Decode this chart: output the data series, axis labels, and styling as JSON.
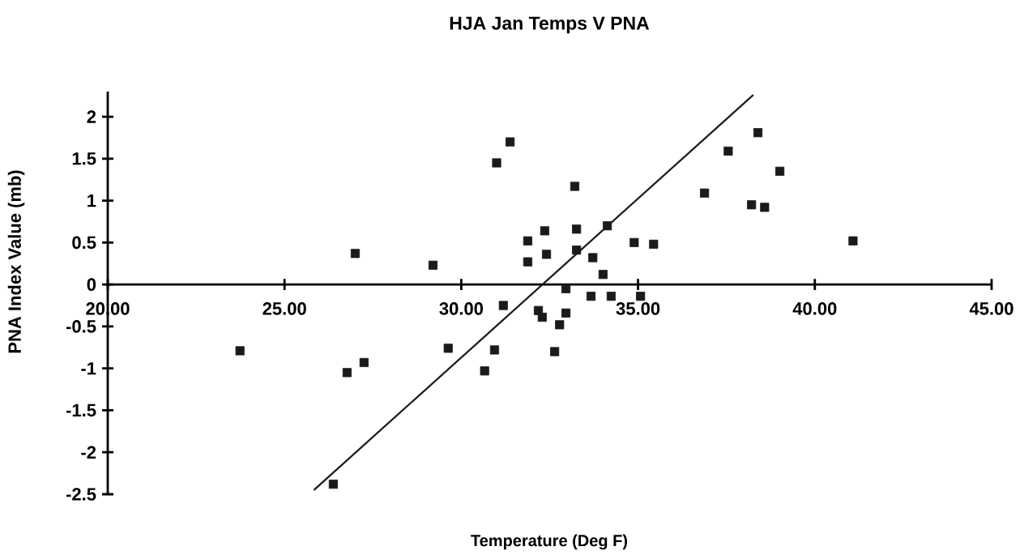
{
  "chart_data": {
    "type": "scatter",
    "title": "HJA Jan Temps V PNA",
    "xlabel": "Temperature (Deg F)",
    "ylabel": "PNA Index Value (mb)",
    "xlim": [
      20,
      45
    ],
    "ylim": [
      -2.5,
      2.3
    ],
    "xticks": [
      {
        "value": 20,
        "label": "20.00"
      },
      {
        "value": 25,
        "label": "25.00"
      },
      {
        "value": 30,
        "label": "30.00"
      },
      {
        "value": 35,
        "label": "35.00"
      },
      {
        "value": 40,
        "label": "40.00"
      },
      {
        "value": 45,
        "label": "45.00"
      }
    ],
    "yticks": [
      -2.5,
      -2,
      -1.5,
      -1,
      -0.5,
      0,
      0.5,
      1,
      1.5,
      2
    ],
    "line_style": "solid",
    "series": [
      {
        "marker": "square",
        "color": "#1a1a1a",
        "x": [
          23.74,
          26.77,
          27.25,
          26.38,
          27.0,
          29.2,
          31.38,
          31.0,
          33.21,
          32.36,
          31.88,
          33.26,
          34.13,
          34.89,
          35.44,
          31.88,
          32.41,
          33.26,
          33.72,
          34.01,
          32.96,
          33.67,
          34.24,
          35.07,
          31.19,
          32.18,
          32.29,
          32.96,
          32.78,
          30.94,
          32.64,
          30.66,
          29.63,
          38.39,
          37.55,
          39.01,
          36.88,
          38.21,
          38.58,
          41.08
        ],
        "values": [
          -0.79,
          -1.05,
          -0.93,
          -2.38,
          0.37,
          0.23,
          1.7,
          1.45,
          1.17,
          0.64,
          0.52,
          0.66,
          0.7,
          0.5,
          0.48,
          0.27,
          0.36,
          0.41,
          0.32,
          0.12,
          -0.05,
          -0.14,
          -0.14,
          -0.14,
          -0.25,
          -0.31,
          -0.39,
          -0.34,
          -0.48,
          -0.78,
          -0.8,
          -1.03,
          -0.76,
          1.81,
          1.59,
          1.35,
          1.09,
          0.95,
          0.92,
          0.52
        ]
      },
      {
        "type": "line",
        "marker": "none",
        "color": "#1a1a1a",
        "x": [
          25.83,
          38.26
        ],
        "values": [
          -2.45,
          2.26
        ]
      }
    ]
  }
}
